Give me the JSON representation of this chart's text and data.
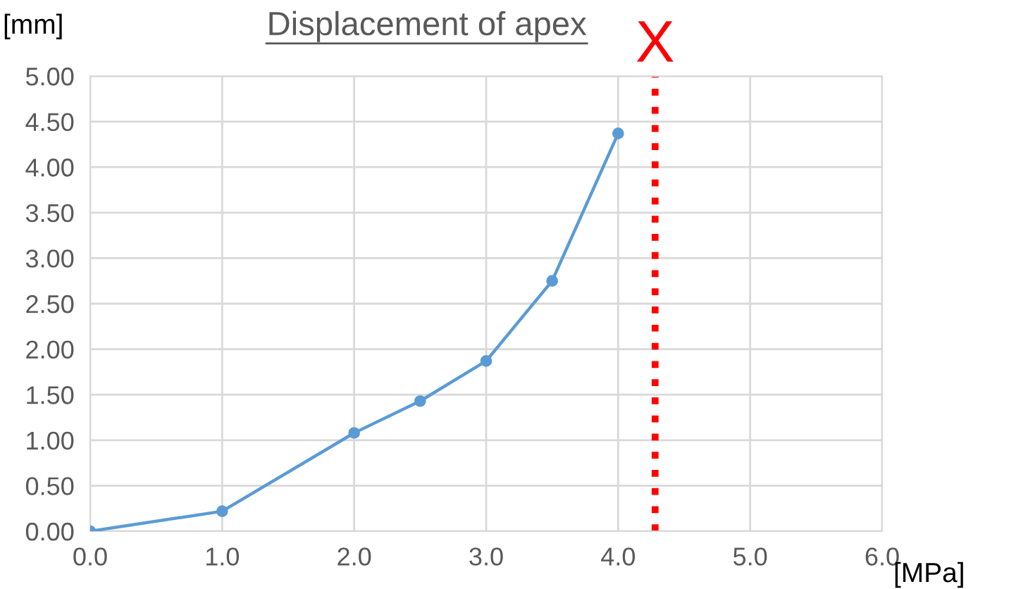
{
  "chart_data": {
    "type": "line",
    "title": "Displacement of apex",
    "xlabel": "[MPa]",
    "ylabel": "[mm]",
    "x": [
      0.0,
      1.0,
      2.0,
      2.5,
      3.0,
      3.5,
      4.0
    ],
    "series": [
      {
        "color": "#5b9bd5",
        "values": [
          0.0,
          0.22,
          1.08,
          1.43,
          1.87,
          2.75,
          4.37
        ]
      }
    ],
    "xlim": [
      0,
      6
    ],
    "xticks": [
      {
        "value": 0,
        "label": "0.0"
      },
      {
        "value": 1,
        "label": "1.0"
      },
      {
        "value": 2,
        "label": "2.0"
      },
      {
        "value": 3,
        "label": "3.0"
      },
      {
        "value": 4,
        "label": "4.0"
      },
      {
        "value": 5,
        "label": "5.0"
      },
      {
        "value": 6,
        "label": "6.0"
      }
    ],
    "ylim": [
      0,
      5
    ],
    "yticks": [
      {
        "value": 0,
        "label": "0.00"
      },
      {
        "value": 0.5,
        "label": "0.50"
      },
      {
        "value": 1,
        "label": "1.00"
      },
      {
        "value": 1.5,
        "label": "1.50"
      },
      {
        "value": 2,
        "label": "2.00"
      },
      {
        "value": 2.5,
        "label": "2.50"
      },
      {
        "value": 3,
        "label": "3.00"
      },
      {
        "value": 3.5,
        "label": "3.50"
      },
      {
        "value": 4,
        "label": "4.00"
      },
      {
        "value": 4.5,
        "label": "4.50"
      },
      {
        "value": 5,
        "label": "5.00"
      }
    ],
    "ref_lines": [
      {
        "axis": "x",
        "value": 4.28,
        "label": "X",
        "color": "#ff0000",
        "line_style": "dotted"
      }
    ],
    "grid": true,
    "marker": "circle",
    "line_style": "solid"
  }
}
